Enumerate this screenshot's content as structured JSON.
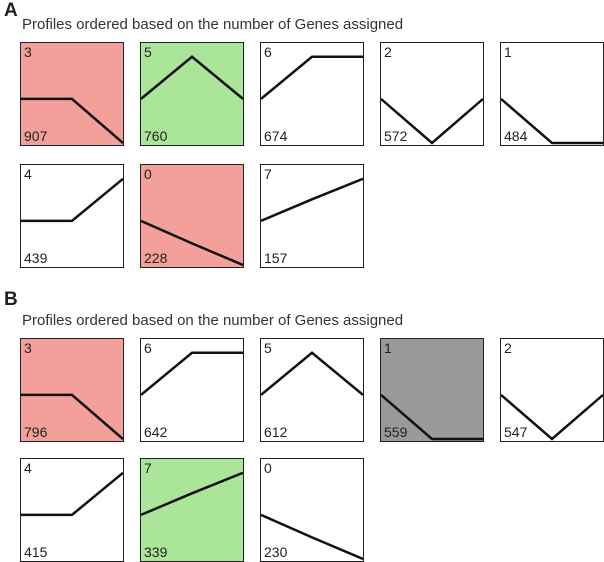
{
  "colors": {
    "red": "#f4a09a",
    "green": "#abe59a",
    "gray": "#999999",
    "none": "#ffffff"
  },
  "panels": [
    {
      "letter": "A",
      "title": "Profiles ordered based on the number of Genes assigned",
      "profiles": [
        {
          "id": "3",
          "count": "907",
          "fill": "red",
          "pattern": [
            0.45,
            0.45,
            0.0
          ]
        },
        {
          "id": "5",
          "count": "760",
          "fill": "green",
          "pattern": [
            0.45,
            0.88,
            0.45
          ]
        },
        {
          "id": "6",
          "count": "674",
          "fill": "none",
          "pattern": [
            0.45,
            0.88,
            0.88
          ]
        },
        {
          "id": "2",
          "count": "572",
          "fill": "none",
          "pattern": [
            0.45,
            0.0,
            0.45
          ]
        },
        {
          "id": "1",
          "count": "484",
          "fill": "none",
          "pattern": [
            0.45,
            0.0,
            0.0
          ]
        },
        {
          "id": "4",
          "count": "439",
          "fill": "none",
          "pattern": [
            0.45,
            0.45,
            0.88
          ]
        },
        {
          "id": "0",
          "count": "228",
          "fill": "red",
          "pattern": [
            0.45,
            0.22,
            0.0
          ]
        },
        {
          "id": "7",
          "count": "157",
          "fill": "none",
          "pattern": [
            0.45,
            0.67,
            0.88
          ]
        }
      ]
    },
    {
      "letter": "B",
      "title": "Profiles ordered based on the number of Genes assigned",
      "profiles": [
        {
          "id": "3",
          "count": "796",
          "fill": "red",
          "pattern": [
            0.45,
            0.45,
            0.0
          ]
        },
        {
          "id": "6",
          "count": "642",
          "fill": "none",
          "pattern": [
            0.45,
            0.88,
            0.88
          ]
        },
        {
          "id": "5",
          "count": "612",
          "fill": "none",
          "pattern": [
            0.45,
            0.88,
            0.45
          ]
        },
        {
          "id": "1",
          "count": "559",
          "fill": "gray",
          "pattern": [
            0.45,
            0.0,
            0.0
          ]
        },
        {
          "id": "2",
          "count": "547",
          "fill": "none",
          "pattern": [
            0.45,
            0.0,
            0.45
          ]
        },
        {
          "id": "4",
          "count": "415",
          "fill": "none",
          "pattern": [
            0.45,
            0.45,
            0.88
          ]
        },
        {
          "id": "7",
          "count": "339",
          "fill": "green",
          "pattern": [
            0.45,
            0.67,
            0.88
          ]
        },
        {
          "id": "0",
          "count": "230",
          "fill": "none",
          "pattern": [
            0.45,
            0.22,
            0.0
          ]
        }
      ]
    }
  ]
}
